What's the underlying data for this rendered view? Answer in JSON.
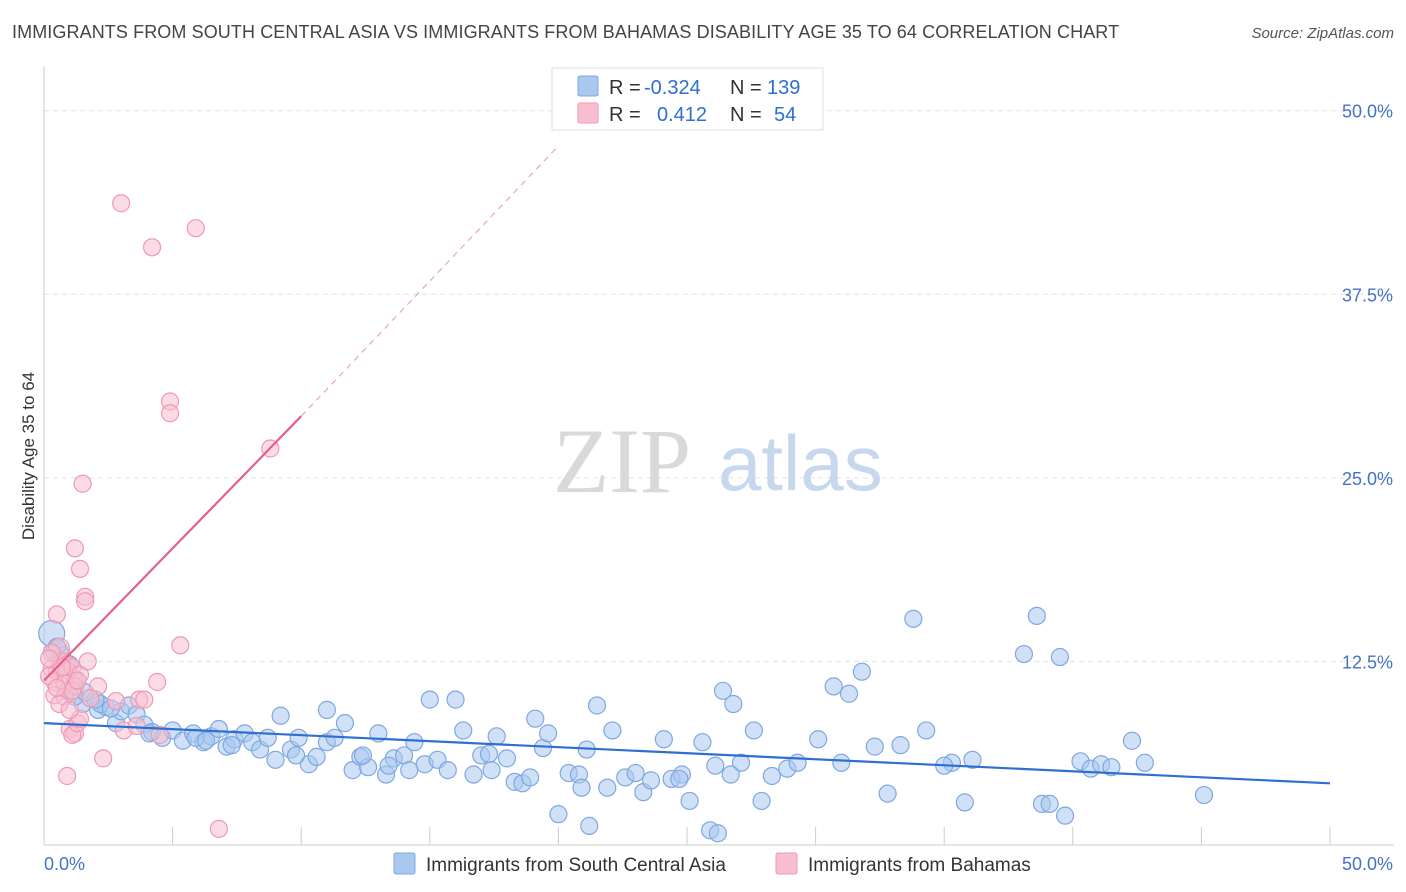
{
  "title": "IMMIGRANTS FROM SOUTH CENTRAL ASIA VS IMMIGRANTS FROM BAHAMAS DISABILITY AGE 35 TO 64 CORRELATION CHART",
  "source": "Source: ZipAtlas.com",
  "watermark": {
    "zip": "ZIP",
    "atlas": "atlas"
  },
  "legend": {
    "series": [
      {
        "r_label": "R =",
        "r_value": "-0.324",
        "n_label": "N =",
        "n_value": "139",
        "color": "#a9c8f0",
        "stroke": "#7fa8e0"
      },
      {
        "r_label": "R =",
        "r_value": "0.412",
        "n_label": "N =",
        "n_value": "54",
        "color": "#f7bfd0",
        "stroke": "#ef98b4"
      }
    ]
  },
  "bottom_legend": [
    {
      "label": "Immigrants from South Central Asia",
      "color": "#a9c8f0",
      "stroke": "#7fa8e0"
    },
    {
      "label": "Immigrants from Bahamas",
      "color": "#f7bfd0",
      "stroke": "#ef98b4"
    }
  ],
  "chart_data": {
    "type": "scatter",
    "title": "IMMIGRANTS FROM SOUTH CENTRAL ASIA VS IMMIGRANTS FROM BAHAMAS DISABILITY AGE 35 TO 64 CORRELATION CHART",
    "xlabel": "",
    "ylabel": "Disability Age 35 to 64",
    "xlim": [
      0,
      50
    ],
    "ylim": [
      0,
      52.5
    ],
    "x_tick_labels": [
      {
        "value": 0,
        "label": "0.0%"
      },
      {
        "value": 50,
        "label": "50.0%"
      }
    ],
    "y_tick_labels": [
      {
        "value": 12.5,
        "label": "12.5%"
      },
      {
        "value": 25,
        "label": "25.0%"
      },
      {
        "value": 37.5,
        "label": "37.5%"
      },
      {
        "value": 50,
        "label": "50.0%"
      }
    ],
    "grid": true,
    "series": [
      {
        "name": "Immigrants from South Central Asia",
        "color": "#7fa8e0",
        "fill": "#a9c8f0",
        "trend": {
          "x1": 0,
          "y1": 8.3,
          "x2": 50,
          "y2": 4.2,
          "color": "#2e6fd1"
        },
        "points": [
          [
            0.3,
            14.4
          ],
          [
            0.5,
            13.2
          ],
          [
            0.6,
            12.6
          ],
          [
            0.8,
            12.1
          ],
          [
            1.0,
            12.3
          ],
          [
            1.2,
            11.2
          ],
          [
            0.9,
            10.5
          ],
          [
            1.5,
            9.6
          ],
          [
            1.8,
            10.0
          ],
          [
            2.1,
            9.2
          ],
          [
            2.4,
            9.4
          ],
          [
            2.8,
            8.3
          ],
          [
            2.2,
            9.6
          ],
          [
            3.0,
            9.1
          ],
          [
            3.3,
            9.5
          ],
          [
            3.6,
            8.9
          ],
          [
            3.9,
            8.2
          ],
          [
            4.2,
            7.7
          ],
          [
            4.6,
            7.3
          ],
          [
            5.0,
            7.8
          ],
          [
            5.4,
            7.1
          ],
          [
            5.8,
            7.6
          ],
          [
            6.2,
            7.0
          ],
          [
            6.5,
            7.4
          ],
          [
            6.8,
            7.9
          ],
          [
            7.1,
            6.7
          ],
          [
            7.4,
            7.2
          ],
          [
            7.8,
            7.6
          ],
          [
            8.1,
            7.0
          ],
          [
            8.4,
            6.5
          ],
          [
            8.7,
            7.3
          ],
          [
            9.0,
            5.8
          ],
          [
            9.2,
            8.8
          ],
          [
            9.6,
            6.5
          ],
          [
            9.9,
            7.3
          ],
          [
            10.3,
            5.5
          ],
          [
            10.6,
            6.0
          ],
          [
            11.0,
            7.0
          ],
          [
            11.3,
            7.3
          ],
          [
            11.0,
            9.2
          ],
          [
            11.7,
            8.3
          ],
          [
            12.0,
            5.1
          ],
          [
            12.3,
            6.0
          ],
          [
            12.6,
            5.3
          ],
          [
            13.0,
            7.6
          ],
          [
            13.3,
            4.8
          ],
          [
            13.6,
            5.9
          ],
          [
            14.0,
            6.1
          ],
          [
            14.4,
            7.0
          ],
          [
            14.8,
            5.5
          ],
          [
            15.0,
            9.9
          ],
          [
            15.3,
            5.8
          ],
          [
            15.7,
            5.1
          ],
          [
            16.0,
            9.9
          ],
          [
            16.3,
            7.8
          ],
          [
            16.7,
            4.8
          ],
          [
            17.0,
            6.1
          ],
          [
            17.3,
            6.2
          ],
          [
            17.6,
            7.4
          ],
          [
            18.0,
            5.9
          ],
          [
            18.3,
            4.3
          ],
          [
            18.6,
            4.2
          ],
          [
            18.9,
            4.6
          ],
          [
            19.1,
            8.6
          ],
          [
            19.4,
            6.6
          ],
          [
            19.6,
            7.6
          ],
          [
            20.0,
            2.1
          ],
          [
            20.4,
            4.9
          ],
          [
            20.8,
            4.8
          ],
          [
            21.1,
            6.5
          ],
          [
            21.5,
            9.5
          ],
          [
            21.9,
            3.9
          ],
          [
            22.1,
            7.8
          ],
          [
            22.6,
            4.6
          ],
          [
            23.0,
            4.9
          ],
          [
            23.3,
            3.6
          ],
          [
            23.6,
            4.4
          ],
          [
            24.1,
            7.2
          ],
          [
            24.4,
            4.5
          ],
          [
            24.8,
            4.8
          ],
          [
            25.1,
            3.0
          ],
          [
            25.6,
            7.0
          ],
          [
            26.1,
            5.4
          ],
          [
            26.4,
            10.5
          ],
          [
            26.8,
            9.6
          ],
          [
            27.1,
            5.6
          ],
          [
            27.6,
            7.8
          ],
          [
            27.9,
            3.0
          ],
          [
            28.3,
            4.7
          ],
          [
            28.9,
            5.2
          ],
          [
            29.3,
            5.6
          ],
          [
            30.1,
            7.2
          ],
          [
            30.7,
            10.8
          ],
          [
            31.3,
            10.3
          ],
          [
            31.8,
            11.8
          ],
          [
            32.3,
            6.7
          ],
          [
            32.8,
            3.5
          ],
          [
            33.3,
            6.8
          ],
          [
            33.8,
            15.4
          ],
          [
            34.3,
            7.8
          ],
          [
            35.3,
            5.6
          ],
          [
            35.8,
            2.9
          ],
          [
            36.1,
            5.8
          ],
          [
            38.1,
            13.0
          ],
          [
            38.6,
            15.6
          ],
          [
            38.8,
            2.8
          ],
          [
            39.1,
            2.8
          ],
          [
            39.5,
            12.8
          ],
          [
            39.7,
            2.0
          ],
          [
            40.3,
            5.7
          ],
          [
            40.7,
            5.2
          ],
          [
            41.1,
            5.5
          ],
          [
            41.5,
            5.3
          ],
          [
            42.3,
            7.1
          ],
          [
            42.8,
            5.6
          ],
          [
            45.1,
            3.4
          ],
          [
            21.2,
            1.3
          ],
          [
            25.9,
            1.0
          ],
          [
            26.2,
            0.8
          ],
          [
            24.7,
            4.5
          ],
          [
            17.4,
            5.1
          ],
          [
            12.4,
            6.1
          ],
          [
            7.3,
            6.8
          ],
          [
            9.8,
            6.1
          ],
          [
            13.4,
            5.4
          ],
          [
            4.1,
            7.6
          ],
          [
            5.9,
            7.3
          ],
          [
            6.3,
            7.1
          ],
          [
            1.2,
            10.1
          ],
          [
            2.0,
            9.9
          ],
          [
            2.6,
            9.3
          ],
          [
            1.6,
            10.4
          ],
          [
            0.7,
            12.9
          ],
          [
            0.5,
            13.5
          ],
          [
            14.2,
            5.1
          ],
          [
            20.9,
            3.9
          ],
          [
            26.7,
            4.8
          ],
          [
            31.0,
            5.6
          ],
          [
            35.0,
            5.4
          ]
        ]
      },
      {
        "name": "Immigrants from Bahamas",
        "color": "#ef98b4",
        "fill": "#f7bfd0",
        "trend": {
          "x1": 0,
          "y1": 11.2,
          "x2": 10,
          "y2": 29.2,
          "color": "#e3608c"
        },
        "trend_extension": {
          "x1": 10,
          "y1": 29.2,
          "x2": 20,
          "y2": 47.6
        },
        "points": [
          [
            3.0,
            43.7
          ],
          [
            4.2,
            40.7
          ],
          [
            5.9,
            42.0
          ],
          [
            4.9,
            30.2
          ],
          [
            4.9,
            29.4
          ],
          [
            8.8,
            27.0
          ],
          [
            1.5,
            24.6
          ],
          [
            1.2,
            20.2
          ],
          [
            1.4,
            18.8
          ],
          [
            1.6,
            16.9
          ],
          [
            1.6,
            16.6
          ],
          [
            0.5,
            15.7
          ],
          [
            5.3,
            13.6
          ],
          [
            0.6,
            13.4
          ],
          [
            0.7,
            12.5
          ],
          [
            0.9,
            12.3
          ],
          [
            0.3,
            12.0
          ],
          [
            0.5,
            11.8
          ],
          [
            0.7,
            11.6
          ],
          [
            0.9,
            11.9
          ],
          [
            1.1,
            12.1
          ],
          [
            1.4,
            11.6
          ],
          [
            1.7,
            12.5
          ],
          [
            0.4,
            11.1
          ],
          [
            0.8,
            11.0
          ],
          [
            1.2,
            10.8
          ],
          [
            0.4,
            10.2
          ],
          [
            0.8,
            10.1
          ],
          [
            1.1,
            10.5
          ],
          [
            2.1,
            10.8
          ],
          [
            0.6,
            9.6
          ],
          [
            3.7,
            9.9
          ],
          [
            3.9,
            9.9
          ],
          [
            1.0,
            7.9
          ],
          [
            1.2,
            7.6
          ],
          [
            1.1,
            7.5
          ],
          [
            1.3,
            8.3
          ],
          [
            1.4,
            8.6
          ],
          [
            3.1,
            7.8
          ],
          [
            4.5,
            7.5
          ],
          [
            4.4,
            11.1
          ],
          [
            0.9,
            4.7
          ],
          [
            2.3,
            5.9
          ],
          [
            6.8,
            1.1
          ],
          [
            0.3,
            13.1
          ],
          [
            0.7,
            12.1
          ],
          [
            1.3,
            11.2
          ],
          [
            1.8,
            10.0
          ],
          [
            0.2,
            11.5
          ],
          [
            0.5,
            10.7
          ],
          [
            1.0,
            9.2
          ],
          [
            0.2,
            12.7
          ],
          [
            2.8,
            9.8
          ],
          [
            3.6,
            8.1
          ]
        ]
      }
    ]
  }
}
